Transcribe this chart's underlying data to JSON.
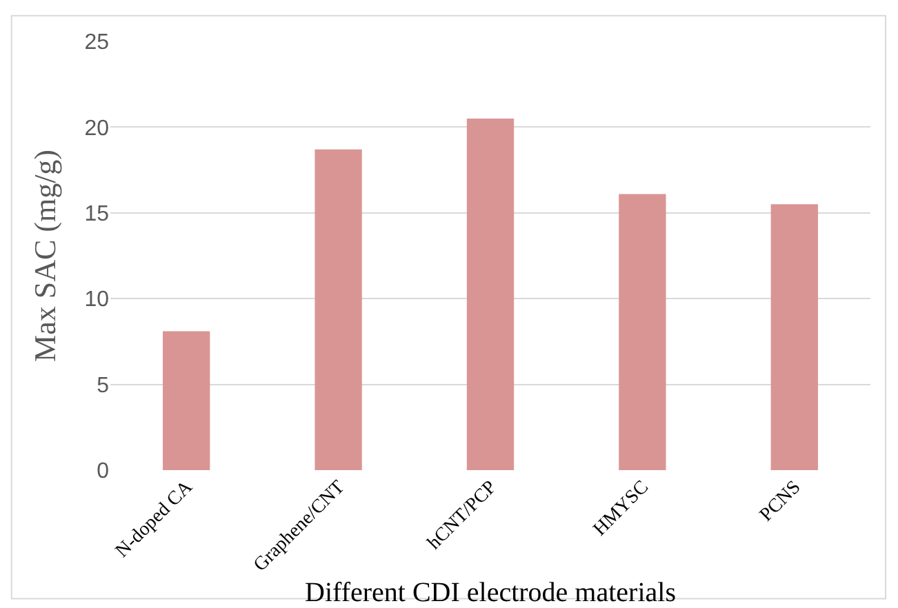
{
  "chart_data": {
    "type": "bar",
    "xlabel": "Different CDI electrode materials",
    "ylabel": "Max SAC (mg/g)",
    "categories": [
      "N-doped CA",
      "Graphene/CNT",
      "hCNT/PCP",
      "HMYSC",
      "PCNS"
    ],
    "values": [
      8.1,
      18.7,
      20.5,
      16.1,
      15.5
    ],
    "color": "#d99594",
    "ylim": [
      0,
      25
    ],
    "yticks": [
      0,
      5,
      10,
      15,
      20,
      25
    ],
    "grid": "y"
  }
}
